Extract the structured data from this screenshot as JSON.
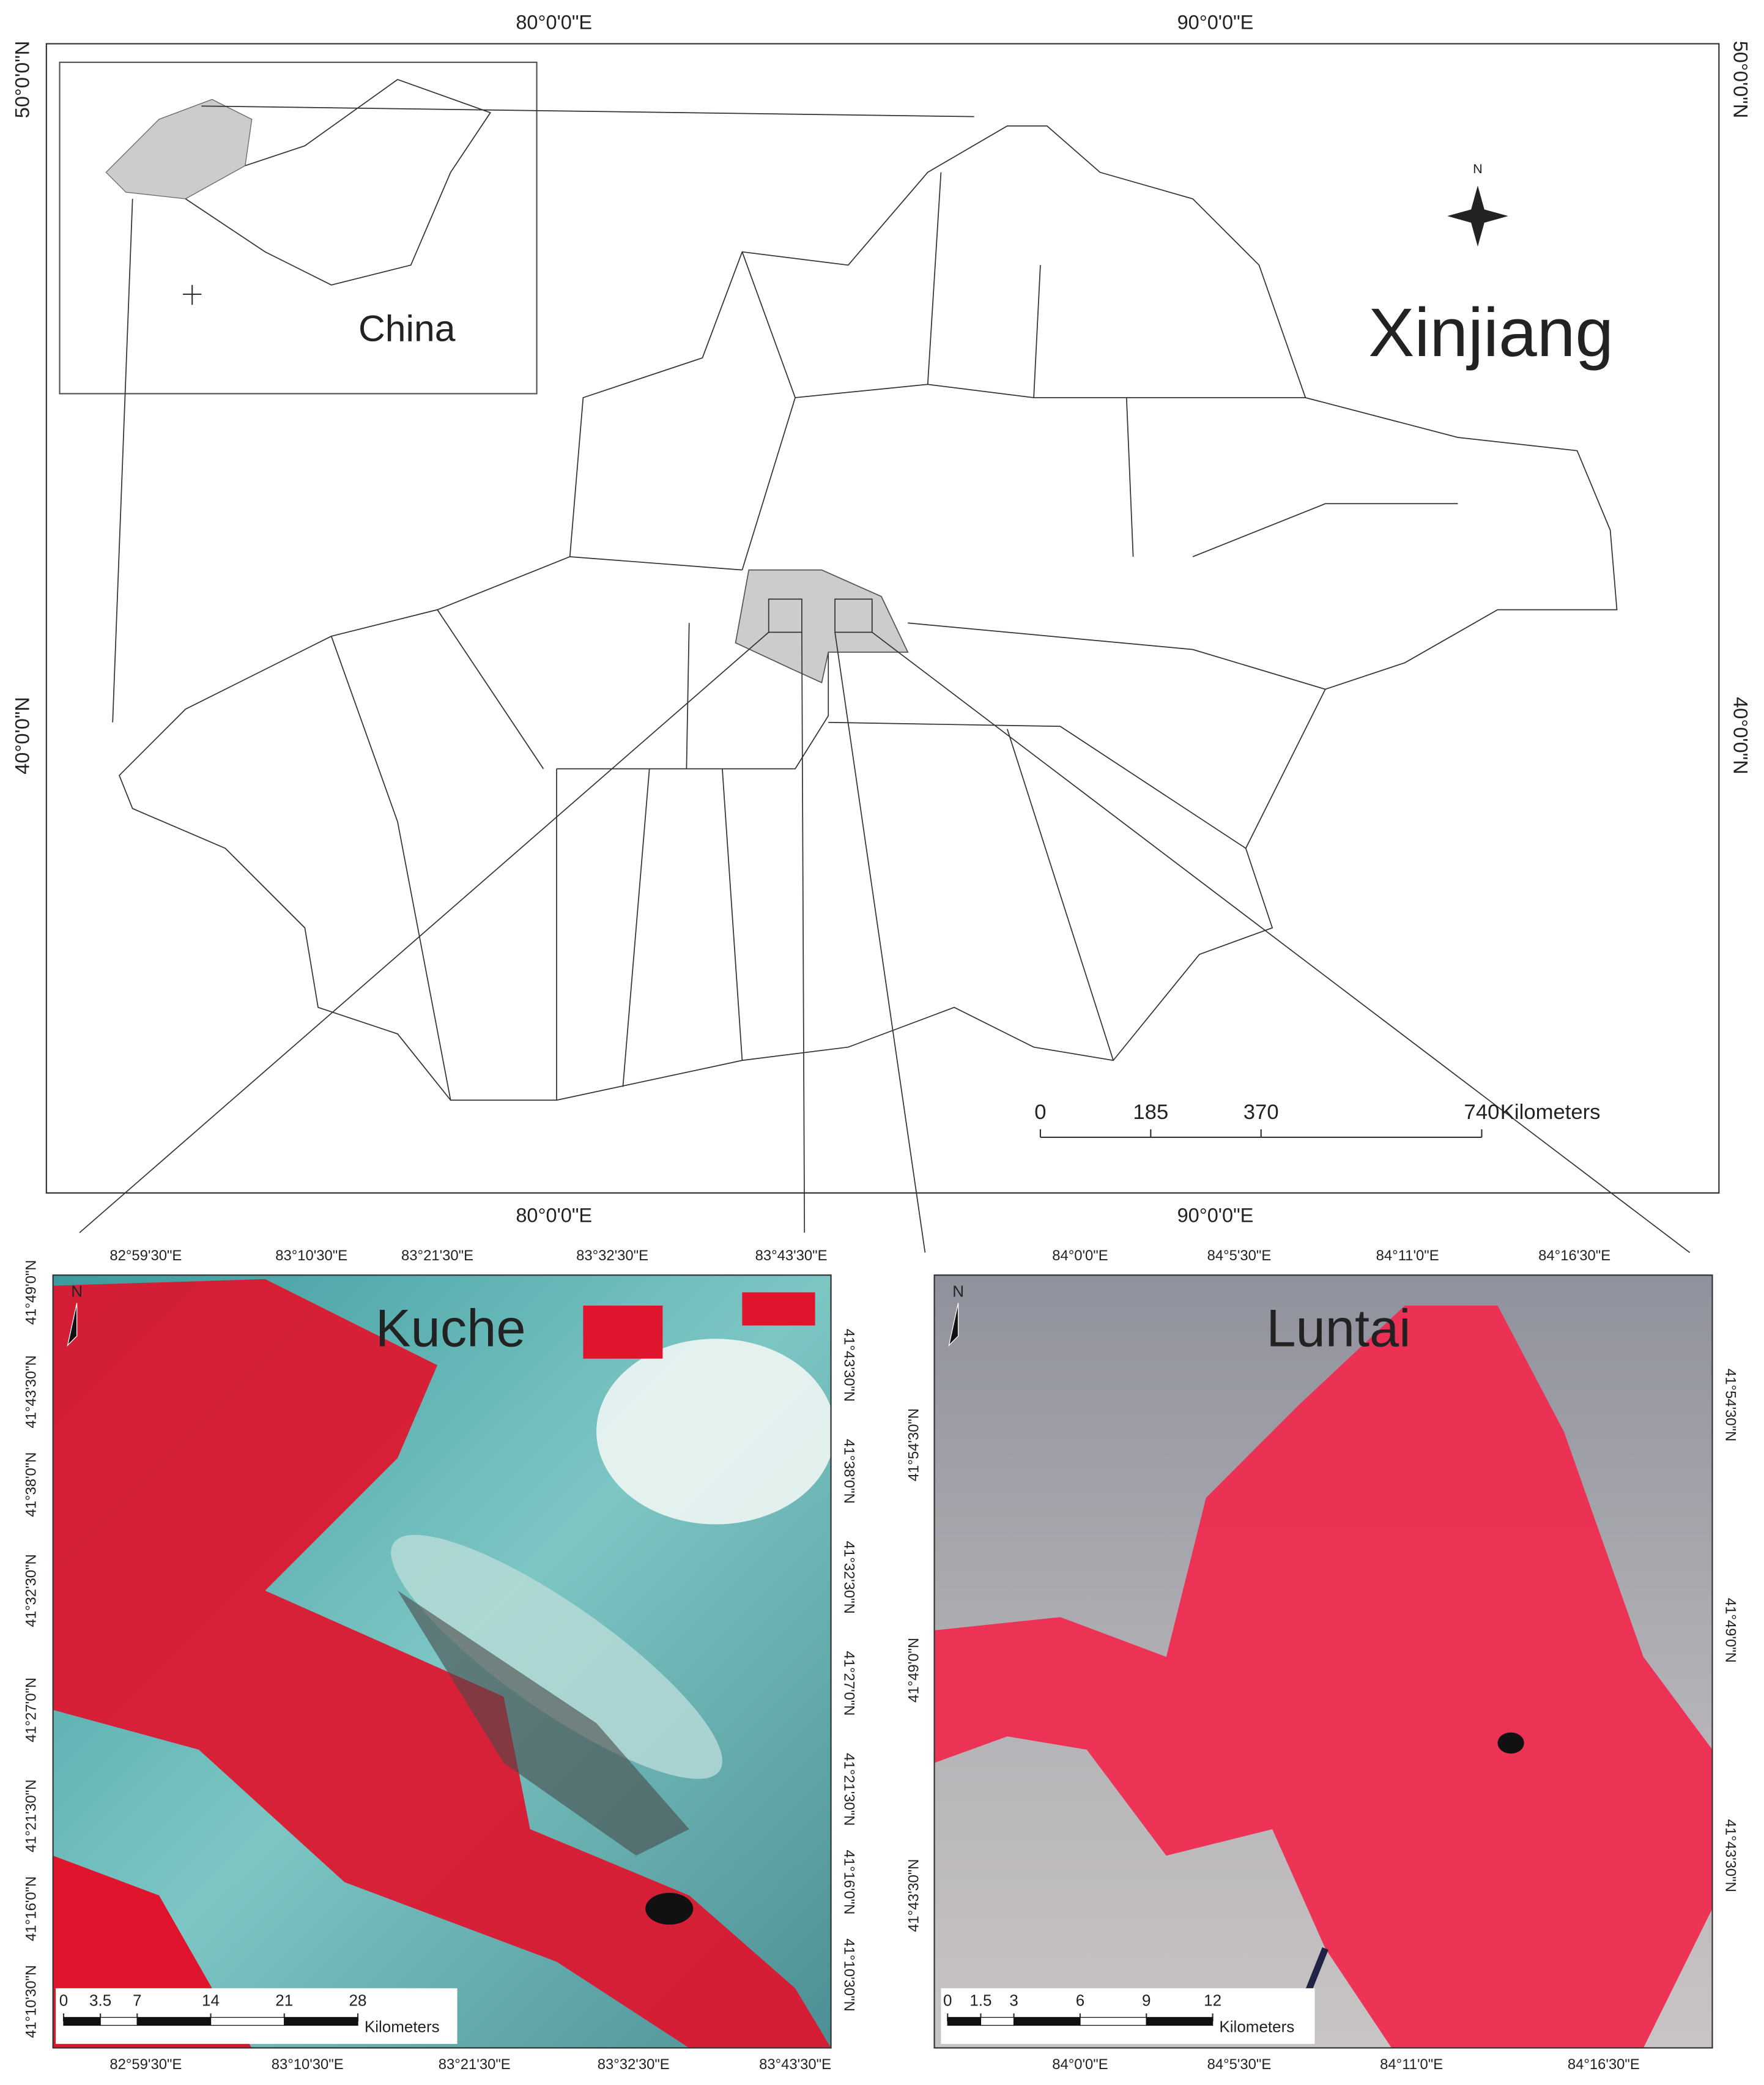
{
  "main_map": {
    "region_label": "Xinjiang",
    "inset_label": "China",
    "north_label": "N",
    "top_lon": [
      "80°0'0\"E",
      "90°0'0\"E"
    ],
    "bottom_lon": [
      "80°0'0\"E",
      "90°0'0\"E"
    ],
    "left_lat": [
      "50°0'0\"N",
      "40°0'0\"N"
    ],
    "right_lat": [
      "50°0'0\"N",
      "40°0'0\"N"
    ],
    "scale_ticks": [
      0,
      185,
      370,
      740
    ],
    "scale_unit": "Kilometers"
  },
  "kuche": {
    "title": "Kuche",
    "north_label": "N",
    "top_lon": [
      "82°59'30\"E",
      "83°10'30\"E",
      "83°21'30\"E",
      "83°32'30\"E",
      "83°43'30\"E"
    ],
    "bottom_lon": [
      "82°59'30\"E",
      "83°10'30\"E",
      "83°21'30\"E",
      "83°32'30\"E",
      "83°43'30\"E"
    ],
    "left_lat": [
      "41°49'0\"N",
      "41°43'30\"N",
      "41°38'0\"N",
      "41°32'30\"N",
      "41°27'0\"N",
      "41°21'30\"N",
      "41°16'0\"N",
      "41°10'30\"N"
    ],
    "right_lat": [
      "41°43'30\"N",
      "41°38'0\"N",
      "41°32'30\"N",
      "41°27'0\"N",
      "41°21'30\"N",
      "41°16'0\"N",
      "41°10'30\"N"
    ],
    "scale_ticks": [
      0,
      3.5,
      7,
      14,
      21,
      28
    ],
    "scale_unit": "Kilometers"
  },
  "luntai": {
    "title": "Luntai",
    "north_label": "N",
    "top_lon": [
      "84°0'0\"E",
      "84°5'30\"E",
      "84°11'0\"E",
      "84°16'30\"E"
    ],
    "bottom_lon": [
      "84°0'0\"E",
      "84°5'30\"E",
      "84°11'0\"E",
      "84°16'30\"E"
    ],
    "left_lat": [
      "41°54'30\"N",
      "41°49'0\"N",
      "41°43'30\"N"
    ],
    "right_lat": [
      "41°54'30\"N",
      "41°49'0\"N",
      "41°43'30\"N"
    ],
    "scale_ticks": [
      0,
      1.5,
      3,
      6,
      9,
      12
    ],
    "scale_unit": "Kilometers"
  }
}
